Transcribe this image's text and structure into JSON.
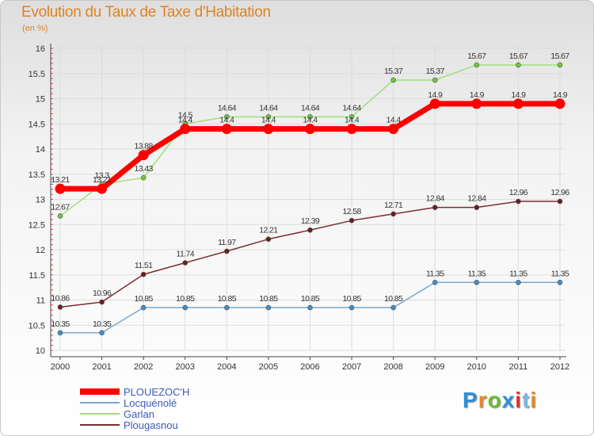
{
  "title": "Evolution du Taux de Taxe d'Habitation",
  "subtitle": "(en %)",
  "brand": {
    "text": "Proxiti",
    "letters": [
      {
        "ch": "P",
        "color": "#2e8fd6"
      },
      {
        "ch": "r",
        "color": "#e5872a"
      },
      {
        "ch": "o",
        "color": "#6dbb2e"
      },
      {
        "ch": "x",
        "color": "#2e8fd6"
      },
      {
        "ch": "i",
        "color": "#d9332b"
      },
      {
        "ch": "t",
        "color": "#7ab8e0"
      },
      {
        "ch": "i",
        "color": "#e5872a"
      }
    ]
  },
  "chart_data": {
    "type": "line",
    "x": [
      "2000",
      "2001",
      "2002",
      "2003",
      "2004",
      "2005",
      "2006",
      "2007",
      "2008",
      "2009",
      "2010",
      "2011",
      "2012"
    ],
    "ylim": [
      10,
      16
    ],
    "yticks": [
      "10",
      "10.5",
      "11",
      "11.5",
      "12",
      "12.5",
      "13",
      "13.5",
      "14",
      "14.5",
      "15",
      "15.5",
      "16"
    ],
    "grid": true,
    "legend_position": "bottom-left",
    "series": [
      {
        "name": "PLOUEZOC'H",
        "color": "#ff0000",
        "marker": "#ff0000",
        "emphasis": true,
        "values": [
          13.21,
          13.21,
          13.88,
          14.4,
          14.4,
          14.4,
          14.4,
          14.4,
          14.4,
          14.9,
          14.9,
          14.9,
          14.9
        ],
        "labels": [
          "13.21",
          "13.21",
          "13.88",
          "14.4",
          "14.4",
          "14.4",
          "14.4",
          "14.4",
          "14.4",
          "14.9",
          "14.9",
          "14.9",
          "14.9"
        ]
      },
      {
        "name": "Locquénolé",
        "color": "#7aa8cc",
        "marker": "#3d8fd0",
        "values": [
          10.35,
          10.35,
          10.85,
          10.85,
          10.85,
          10.85,
          10.85,
          10.85,
          10.85,
          11.35,
          11.35,
          11.35,
          11.35
        ],
        "labels": [
          "10.35",
          "10.35",
          "10.85",
          "10.85",
          "10.85",
          "10.85",
          "10.85",
          "10.85",
          "10.85",
          "11.35",
          "11.35",
          "11.35",
          "11.35"
        ]
      },
      {
        "name": "Garlan",
        "color": "#9ee07a",
        "marker": "#6cc83c",
        "values": [
          12.67,
          13.3,
          13.43,
          14.5,
          14.64,
          14.64,
          14.64,
          14.64,
          15.37,
          15.37,
          15.67,
          15.67,
          15.67
        ],
        "labels": [
          "12.67",
          "13.3",
          "13.43",
          "14.5",
          "14.64",
          "14.64",
          "14.64",
          "14.64",
          "15.37",
          "15.37",
          "15.67",
          "15.67",
          "15.67"
        ]
      },
      {
        "name": "Plougasnou",
        "color": "#7a2f2f",
        "marker": "#6a1e1e",
        "values": [
          10.86,
          10.96,
          11.51,
          11.74,
          11.97,
          12.21,
          12.39,
          12.58,
          12.71,
          12.84,
          12.84,
          12.96,
          12.96
        ],
        "labels": [
          "10.86",
          "10.96",
          "11.51",
          "11.74",
          "11.97",
          "12.21",
          "12.39",
          "12.58",
          "12.71",
          "12.84",
          "12.84",
          "12.96",
          "12.96"
        ]
      }
    ]
  }
}
